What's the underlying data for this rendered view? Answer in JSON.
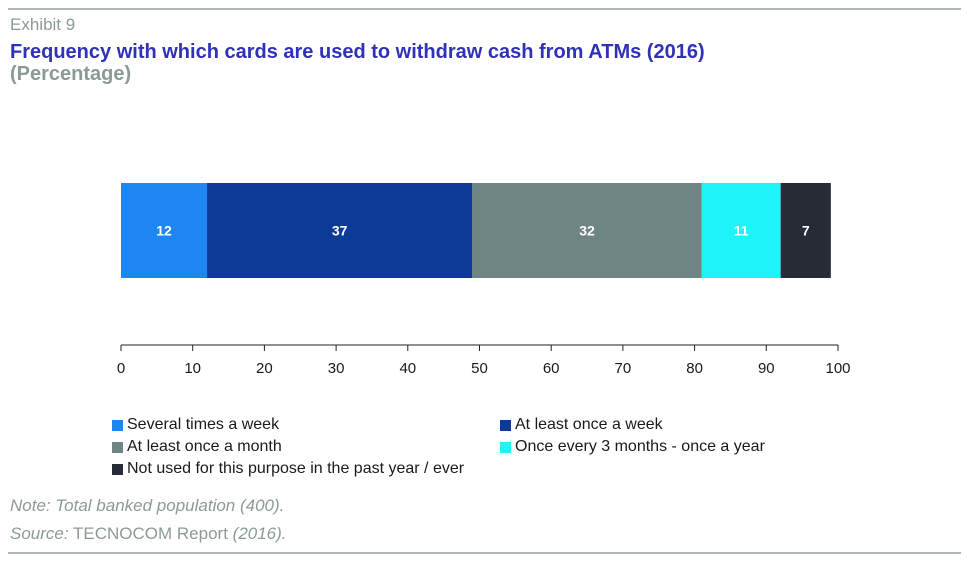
{
  "header": {
    "exhibit": "Exhibit 9",
    "title": "Frequency with which cards are used to withdraw cash from ATMs (2016)",
    "subtitle": "(Percentage)"
  },
  "chart_data": {
    "type": "bar",
    "orientation": "horizontal",
    "stacked": true,
    "categories": [
      ""
    ],
    "series": [
      {
        "name": "Several times a week",
        "values": [
          12
        ],
        "color": "#1e86f0"
      },
      {
        "name": "At least once a week",
        "values": [
          37
        ],
        "color": "#0d3a97"
      },
      {
        "name": "At least once a month",
        "values": [
          32
        ],
        "color": "#6f8583"
      },
      {
        "name": "Once every 3 months - once a year",
        "values": [
          11
        ],
        "color": "#1ef3f8"
      },
      {
        "name": "Not used for this purpose in the past year / ever",
        "values": [
          7
        ],
        "color": "#262b36"
      }
    ],
    "data_labels": [
      "12",
      "37",
      "32",
      "11",
      "7"
    ],
    "xlim": [
      0,
      100
    ],
    "x_ticks": [
      "0",
      "10",
      "20",
      "30",
      "40",
      "50",
      "60",
      "70",
      "80",
      "90",
      "100"
    ],
    "legend_position": "bottom",
    "grid": false
  },
  "footer": {
    "note": "Note: Total banked population (400).",
    "source_label": "Source:",
    "source_text": " TECNOCOM Report ",
    "source_year": "(2016)."
  }
}
